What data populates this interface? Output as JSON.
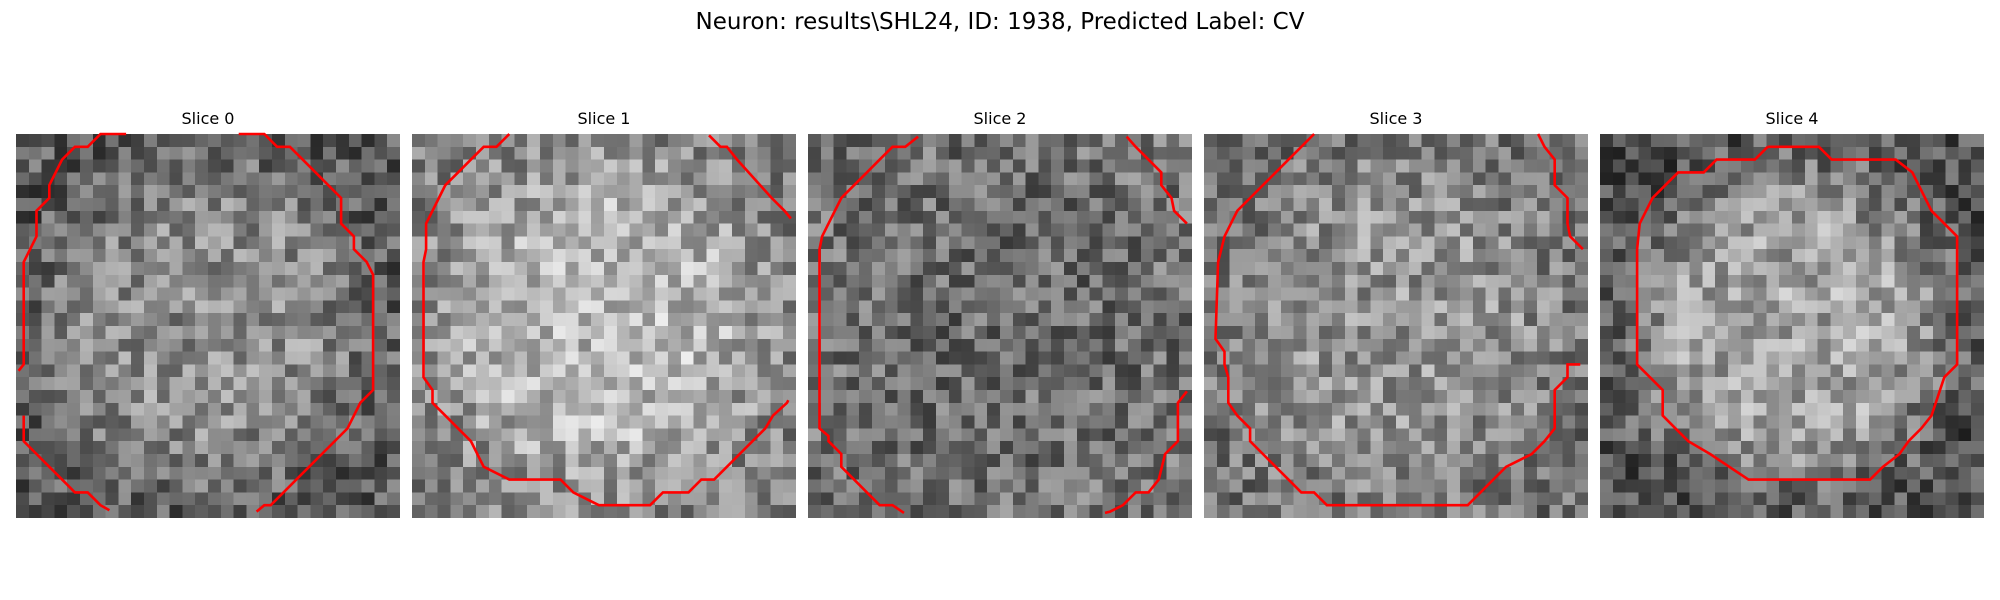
{
  "figure": {
    "title": "Neuron: results\\SHL24, ID: 1938, Predicted Label: CV",
    "contour_color": "#ff0000",
    "grid_size": 30
  },
  "slices": [
    {
      "title": "Slice 0",
      "center_brightness": 0.55,
      "edge_brightness": 0.36,
      "seed": 11,
      "contours": [
        [
          [
            8.6,
            0
          ],
          [
            6.6,
            0
          ],
          [
            5.6,
            1
          ],
          [
            4.6,
            1
          ],
          [
            3.6,
            2
          ],
          [
            2.6,
            4
          ],
          [
            2.6,
            5
          ],
          [
            1.6,
            6
          ],
          [
            1.6,
            8
          ],
          [
            0.6,
            10
          ],
          [
            0.6,
            18
          ],
          [
            0.2,
            18.5
          ]
        ],
        [
          [
            17.4,
            0
          ],
          [
            19.4,
            0
          ],
          [
            20.4,
            1
          ],
          [
            21.4,
            1
          ],
          [
            22.4,
            2
          ],
          [
            24.4,
            4
          ],
          [
            25.4,
            5
          ],
          [
            25.4,
            7
          ],
          [
            26.4,
            8
          ],
          [
            26.4,
            9
          ],
          [
            27.4,
            10
          ],
          [
            27.9,
            11
          ],
          [
            27.9,
            20
          ],
          [
            26.9,
            21
          ],
          [
            25.9,
            23
          ],
          [
            24.9,
            24
          ],
          [
            23.9,
            25
          ],
          [
            22.9,
            26
          ],
          [
            20.9,
            28
          ],
          [
            19.9,
            29
          ],
          [
            19.4,
            29
          ],
          [
            18.8,
            29.5
          ]
        ],
        [
          [
            0.6,
            22
          ],
          [
            0.6,
            24
          ],
          [
            1.6,
            25
          ],
          [
            2.6,
            26
          ],
          [
            3.6,
            27
          ],
          [
            4.6,
            28
          ],
          [
            5.6,
            28
          ],
          [
            6.6,
            29
          ],
          [
            7.3,
            29.4
          ]
        ]
      ]
    },
    {
      "title": "Slice 1",
      "center_brightness": 0.72,
      "edge_brightness": 0.52,
      "seed": 23,
      "contours": [
        [
          [
            7.6,
            0
          ],
          [
            6.6,
            1
          ],
          [
            5.6,
            1
          ],
          [
            4.6,
            2
          ],
          [
            3.6,
            3
          ],
          [
            2.6,
            4
          ],
          [
            2.1,
            5
          ],
          [
            1.1,
            7
          ],
          [
            1.1,
            9
          ],
          [
            0.9,
            10
          ],
          [
            0.9,
            19
          ],
          [
            1.6,
            20
          ],
          [
            1.6,
            21
          ],
          [
            2.6,
            22
          ],
          [
            3.6,
            23
          ],
          [
            4.6,
            24
          ],
          [
            5.6,
            26
          ],
          [
            7.6,
            27
          ],
          [
            9.6,
            27
          ],
          [
            11.6,
            27
          ],
          [
            12.6,
            28
          ],
          [
            14.6,
            29
          ],
          [
            16.6,
            29
          ],
          [
            18.6,
            29
          ],
          [
            19.6,
            28
          ],
          [
            21.6,
            28
          ],
          [
            22.6,
            27
          ],
          [
            23.6,
            27
          ],
          [
            24.6,
            26
          ],
          [
            25.6,
            25
          ],
          [
            26.6,
            24
          ],
          [
            27.6,
            23
          ],
          [
            28.2,
            22
          ],
          [
            29.3,
            21
          ],
          [
            29.4,
            20.8
          ]
        ],
        [
          [
            23.2,
            0.1
          ],
          [
            24.1,
            1
          ],
          [
            24.6,
            1
          ],
          [
            25.4,
            2
          ],
          [
            26.3,
            3
          ],
          [
            27.2,
            4
          ],
          [
            28.1,
            5
          ],
          [
            29.1,
            6
          ],
          [
            29.6,
            6.6
          ]
        ]
      ]
    },
    {
      "title": "Slice 2",
      "center_brightness": 0.42,
      "edge_brightness": 0.45,
      "seed": 37,
      "contours": [
        [
          [
            8.6,
            0.2
          ],
          [
            7.6,
            1
          ],
          [
            6.6,
            1
          ],
          [
            5.6,
            2
          ],
          [
            4.6,
            3
          ],
          [
            3.6,
            4
          ],
          [
            2.6,
            5
          ],
          [
            1.6,
            7
          ],
          [
            1.1,
            8
          ],
          [
            0.9,
            9
          ],
          [
            0.9,
            23
          ],
          [
            1.6,
            23.6
          ],
          [
            1.6,
            24
          ],
          [
            2.6,
            25
          ],
          [
            2.6,
            26
          ],
          [
            3.6,
            27
          ],
          [
            4.6,
            28
          ],
          [
            5.6,
            29
          ],
          [
            6.6,
            29
          ],
          [
            7.5,
            29.6
          ]
        ],
        [
          [
            24.9,
            0.2
          ],
          [
            25.6,
            1
          ],
          [
            26.6,
            2
          ],
          [
            27.6,
            3
          ],
          [
            27.6,
            4
          ],
          [
            28.4,
            5
          ],
          [
            28.6,
            6
          ],
          [
            29.6,
            7
          ]
        ],
        [
          [
            29.6,
            20.1
          ],
          [
            28.9,
            21
          ],
          [
            28.9,
            24
          ],
          [
            27.9,
            25
          ],
          [
            27.4,
            27
          ],
          [
            26.6,
            28
          ],
          [
            25.6,
            28
          ],
          [
            24.6,
            29
          ],
          [
            23.6,
            29.5
          ],
          [
            23.2,
            29.6
          ]
        ]
      ]
    },
    {
      "title": "Slice 3",
      "center_brightness": 0.58,
      "edge_brightness": 0.46,
      "seed": 53,
      "contours": [
        [
          [
            8.6,
            0
          ],
          [
            7.6,
            1
          ],
          [
            6.6,
            2
          ],
          [
            5.6,
            3
          ],
          [
            4.6,
            4
          ],
          [
            3.6,
            5
          ],
          [
            2.6,
            6
          ],
          [
            2.1,
            7
          ],
          [
            1.6,
            8
          ],
          [
            1.1,
            10
          ],
          [
            0.9,
            16
          ],
          [
            1.6,
            17
          ],
          [
            1.6,
            18
          ],
          [
            1.9,
            19
          ],
          [
            1.9,
            21
          ],
          [
            2.6,
            22
          ],
          [
            3.6,
            23
          ],
          [
            3.6,
            24
          ],
          [
            4.6,
            25
          ],
          [
            5.6,
            26
          ],
          [
            6.6,
            27
          ],
          [
            7.6,
            28
          ],
          [
            8.6,
            28
          ],
          [
            9.6,
            29
          ],
          [
            20.6,
            29
          ],
          [
            21.6,
            28
          ],
          [
            22.6,
            27
          ],
          [
            23.6,
            26
          ],
          [
            25.6,
            25
          ],
          [
            26.6,
            24
          ],
          [
            27.4,
            23
          ],
          [
            27.4,
            20
          ],
          [
            28.4,
            19
          ],
          [
            28.4,
            18
          ],
          [
            29.4,
            18
          ]
        ],
        [
          [
            26.1,
            0
          ],
          [
            26.6,
            1
          ],
          [
            27.4,
            2
          ],
          [
            27.4,
            4
          ],
          [
            28.4,
            5
          ],
          [
            28.4,
            7
          ],
          [
            28.6,
            8
          ],
          [
            29.6,
            9
          ]
        ]
      ]
    },
    {
      "title": "Slice 4",
      "center_brightness": 0.64,
      "edge_brightness": 0.32,
      "seed": 71,
      "contours": [
        [
          [
            13.1,
            1
          ],
          [
            12.1,
            2
          ],
          [
            9.1,
            2
          ],
          [
            8.1,
            3
          ],
          [
            6.1,
            3
          ],
          [
            5.1,
            4
          ],
          [
            4.1,
            5
          ],
          [
            3.1,
            7
          ],
          [
            2.9,
            9
          ],
          [
            2.9,
            18
          ],
          [
            3.9,
            19
          ],
          [
            4.9,
            20
          ],
          [
            4.9,
            22
          ],
          [
            5.9,
            23
          ],
          [
            6.9,
            24
          ],
          [
            8.6,
            25
          ],
          [
            11.6,
            27
          ],
          [
            21.1,
            27
          ],
          [
            22.1,
            26
          ],
          [
            23.4,
            25
          ],
          [
            24.1,
            24
          ],
          [
            25.1,
            23
          ],
          [
            25.9,
            22
          ],
          [
            26.9,
            19
          ],
          [
            27.9,
            18
          ],
          [
            27.9,
            16
          ],
          [
            27.9,
            8
          ],
          [
            26.9,
            7
          ],
          [
            25.9,
            6
          ],
          [
            24.4,
            3
          ],
          [
            23.1,
            2
          ],
          [
            22.1,
            2
          ],
          [
            18.1,
            2
          ],
          [
            17.1,
            1
          ],
          [
            13.1,
            1
          ]
        ]
      ]
    }
  ]
}
